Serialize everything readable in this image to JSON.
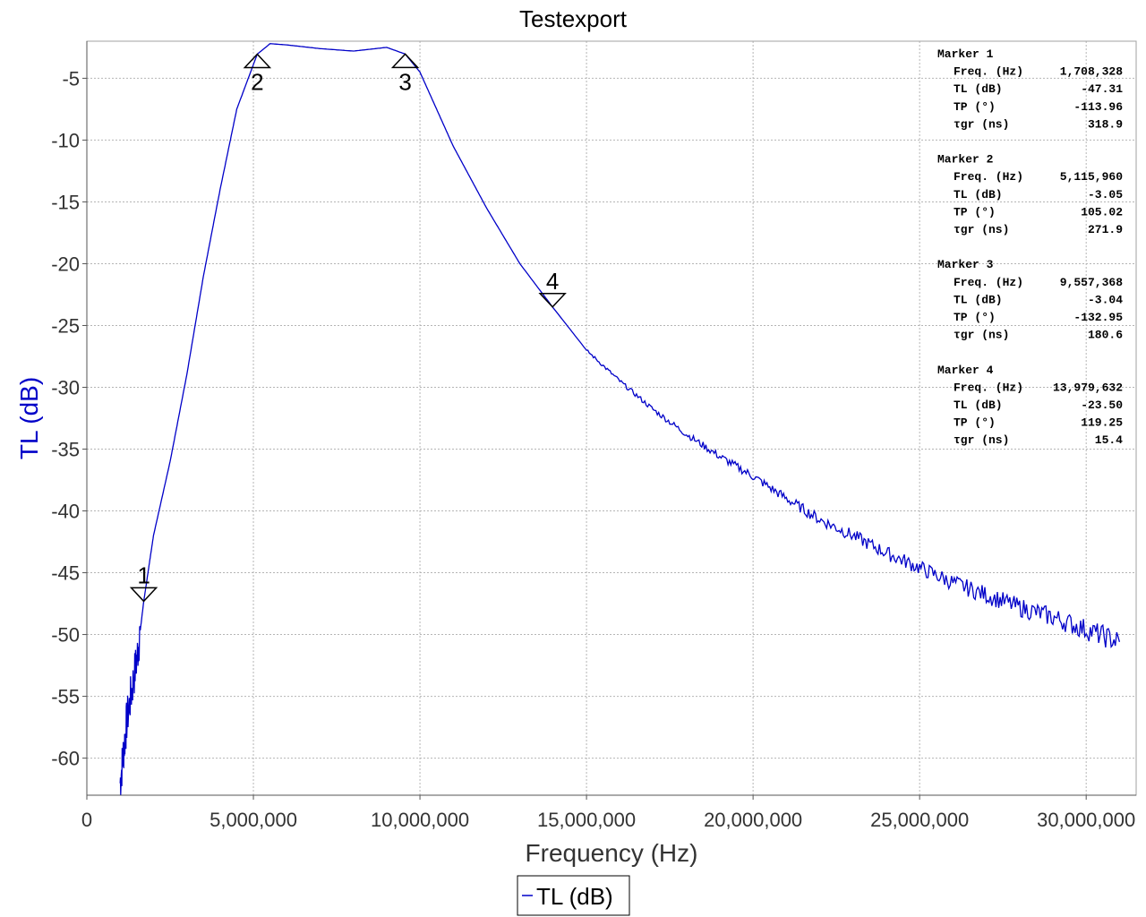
{
  "chart_data": {
    "type": "line",
    "title": "Testexport",
    "xlabel": "Frequency (Hz)",
    "ylabel": "TL (dB)",
    "xlim": [
      0,
      31500000
    ],
    "ylim": [
      -63,
      -2
    ],
    "x_ticks": [
      0,
      5000000,
      10000000,
      15000000,
      20000000,
      25000000,
      30000000
    ],
    "x_tick_labels": [
      "0",
      "5,000,000",
      "10,000,000",
      "15,000,000",
      "20,000,000",
      "25,000,000",
      "30,000,000"
    ],
    "y_ticks": [
      -5,
      -10,
      -15,
      -20,
      -25,
      -30,
      -35,
      -40,
      -45,
      -50,
      -55,
      -60
    ],
    "y_tick_labels": [
      "-5",
      "-10",
      "-15",
      "-20",
      "-25",
      "-30",
      "-35",
      "-40",
      "-45",
      "-50",
      "-55",
      "-60"
    ],
    "grid": true,
    "legend_position": "bottom-center",
    "series": [
      {
        "name": "TL (dB)",
        "color": "#0000c8",
        "x": [
          1000000,
          1200000,
          1500000,
          1708328,
          2000000,
          2500000,
          3000000,
          3500000,
          4000000,
          4500000,
          5115960,
          5500000,
          6000000,
          7000000,
          8000000,
          9000000,
          9557368,
          10000000,
          10500000,
          11000000,
          12000000,
          13000000,
          13979632,
          15000000,
          16000000,
          17000000,
          18000000,
          19000000,
          20000000,
          21000000,
          22000000,
          23000000,
          24000000,
          25000000,
          26000000,
          27000000,
          28000000,
          29000000,
          30000000,
          31000000
        ],
        "y": [
          -62,
          -57,
          -52,
          -47.31,
          -42,
          -36,
          -29,
          -21,
          -14,
          -7.5,
          -3.05,
          -2.2,
          -2.3,
          -2.6,
          -2.8,
          -2.5,
          -3.04,
          -4.5,
          -7.5,
          -10.5,
          -15.5,
          -20,
          -23.5,
          -27,
          -29.5,
          -31.8,
          -33.8,
          -35.6,
          -37.2,
          -39,
          -40.7,
          -42,
          -43.4,
          -44.6,
          -45.8,
          -46.8,
          -47.8,
          -48.6,
          -49.6,
          -50.6
        ]
      }
    ],
    "markers": [
      {
        "id": "1",
        "freq_hz": 1708328,
        "tl_db": -47.31,
        "direction": "down"
      },
      {
        "id": "2",
        "freq_hz": 5115960,
        "tl_db": -3.05,
        "direction": "up"
      },
      {
        "id": "3",
        "freq_hz": 9557368,
        "tl_db": -3.04,
        "direction": "up"
      },
      {
        "id": "4",
        "freq_hz": 13979632,
        "tl_db": -23.5,
        "direction": "down"
      }
    ],
    "marker_table": [
      {
        "title": "Marker 1",
        "rows": [
          [
            "Freq. (Hz)",
            "1,708,328"
          ],
          [
            "TL (dB)",
            "-47.31"
          ],
          [
            "TP (°)",
            "-113.96"
          ],
          [
            "τgr (ns)",
            "318.9"
          ]
        ]
      },
      {
        "title": "Marker 2",
        "rows": [
          [
            "Freq. (Hz)",
            "5,115,960"
          ],
          [
            "TL (dB)",
            "-3.05"
          ],
          [
            "TP (°)",
            "105.02"
          ],
          [
            "τgr (ns)",
            "271.9"
          ]
        ]
      },
      {
        "title": "Marker 3",
        "rows": [
          [
            "Freq. (Hz)",
            "9,557,368"
          ],
          [
            "TL (dB)",
            "-3.04"
          ],
          [
            "TP (°)",
            "-132.95"
          ],
          [
            "τgr (ns)",
            "180.6"
          ]
        ]
      },
      {
        "title": "Marker 4",
        "rows": [
          [
            "Freq. (Hz)",
            "13,979,632"
          ],
          [
            "TL (dB)",
            "-23.50"
          ],
          [
            "TP (°)",
            "119.25"
          ],
          [
            "τgr (ns)",
            "15.4"
          ]
        ]
      }
    ]
  }
}
